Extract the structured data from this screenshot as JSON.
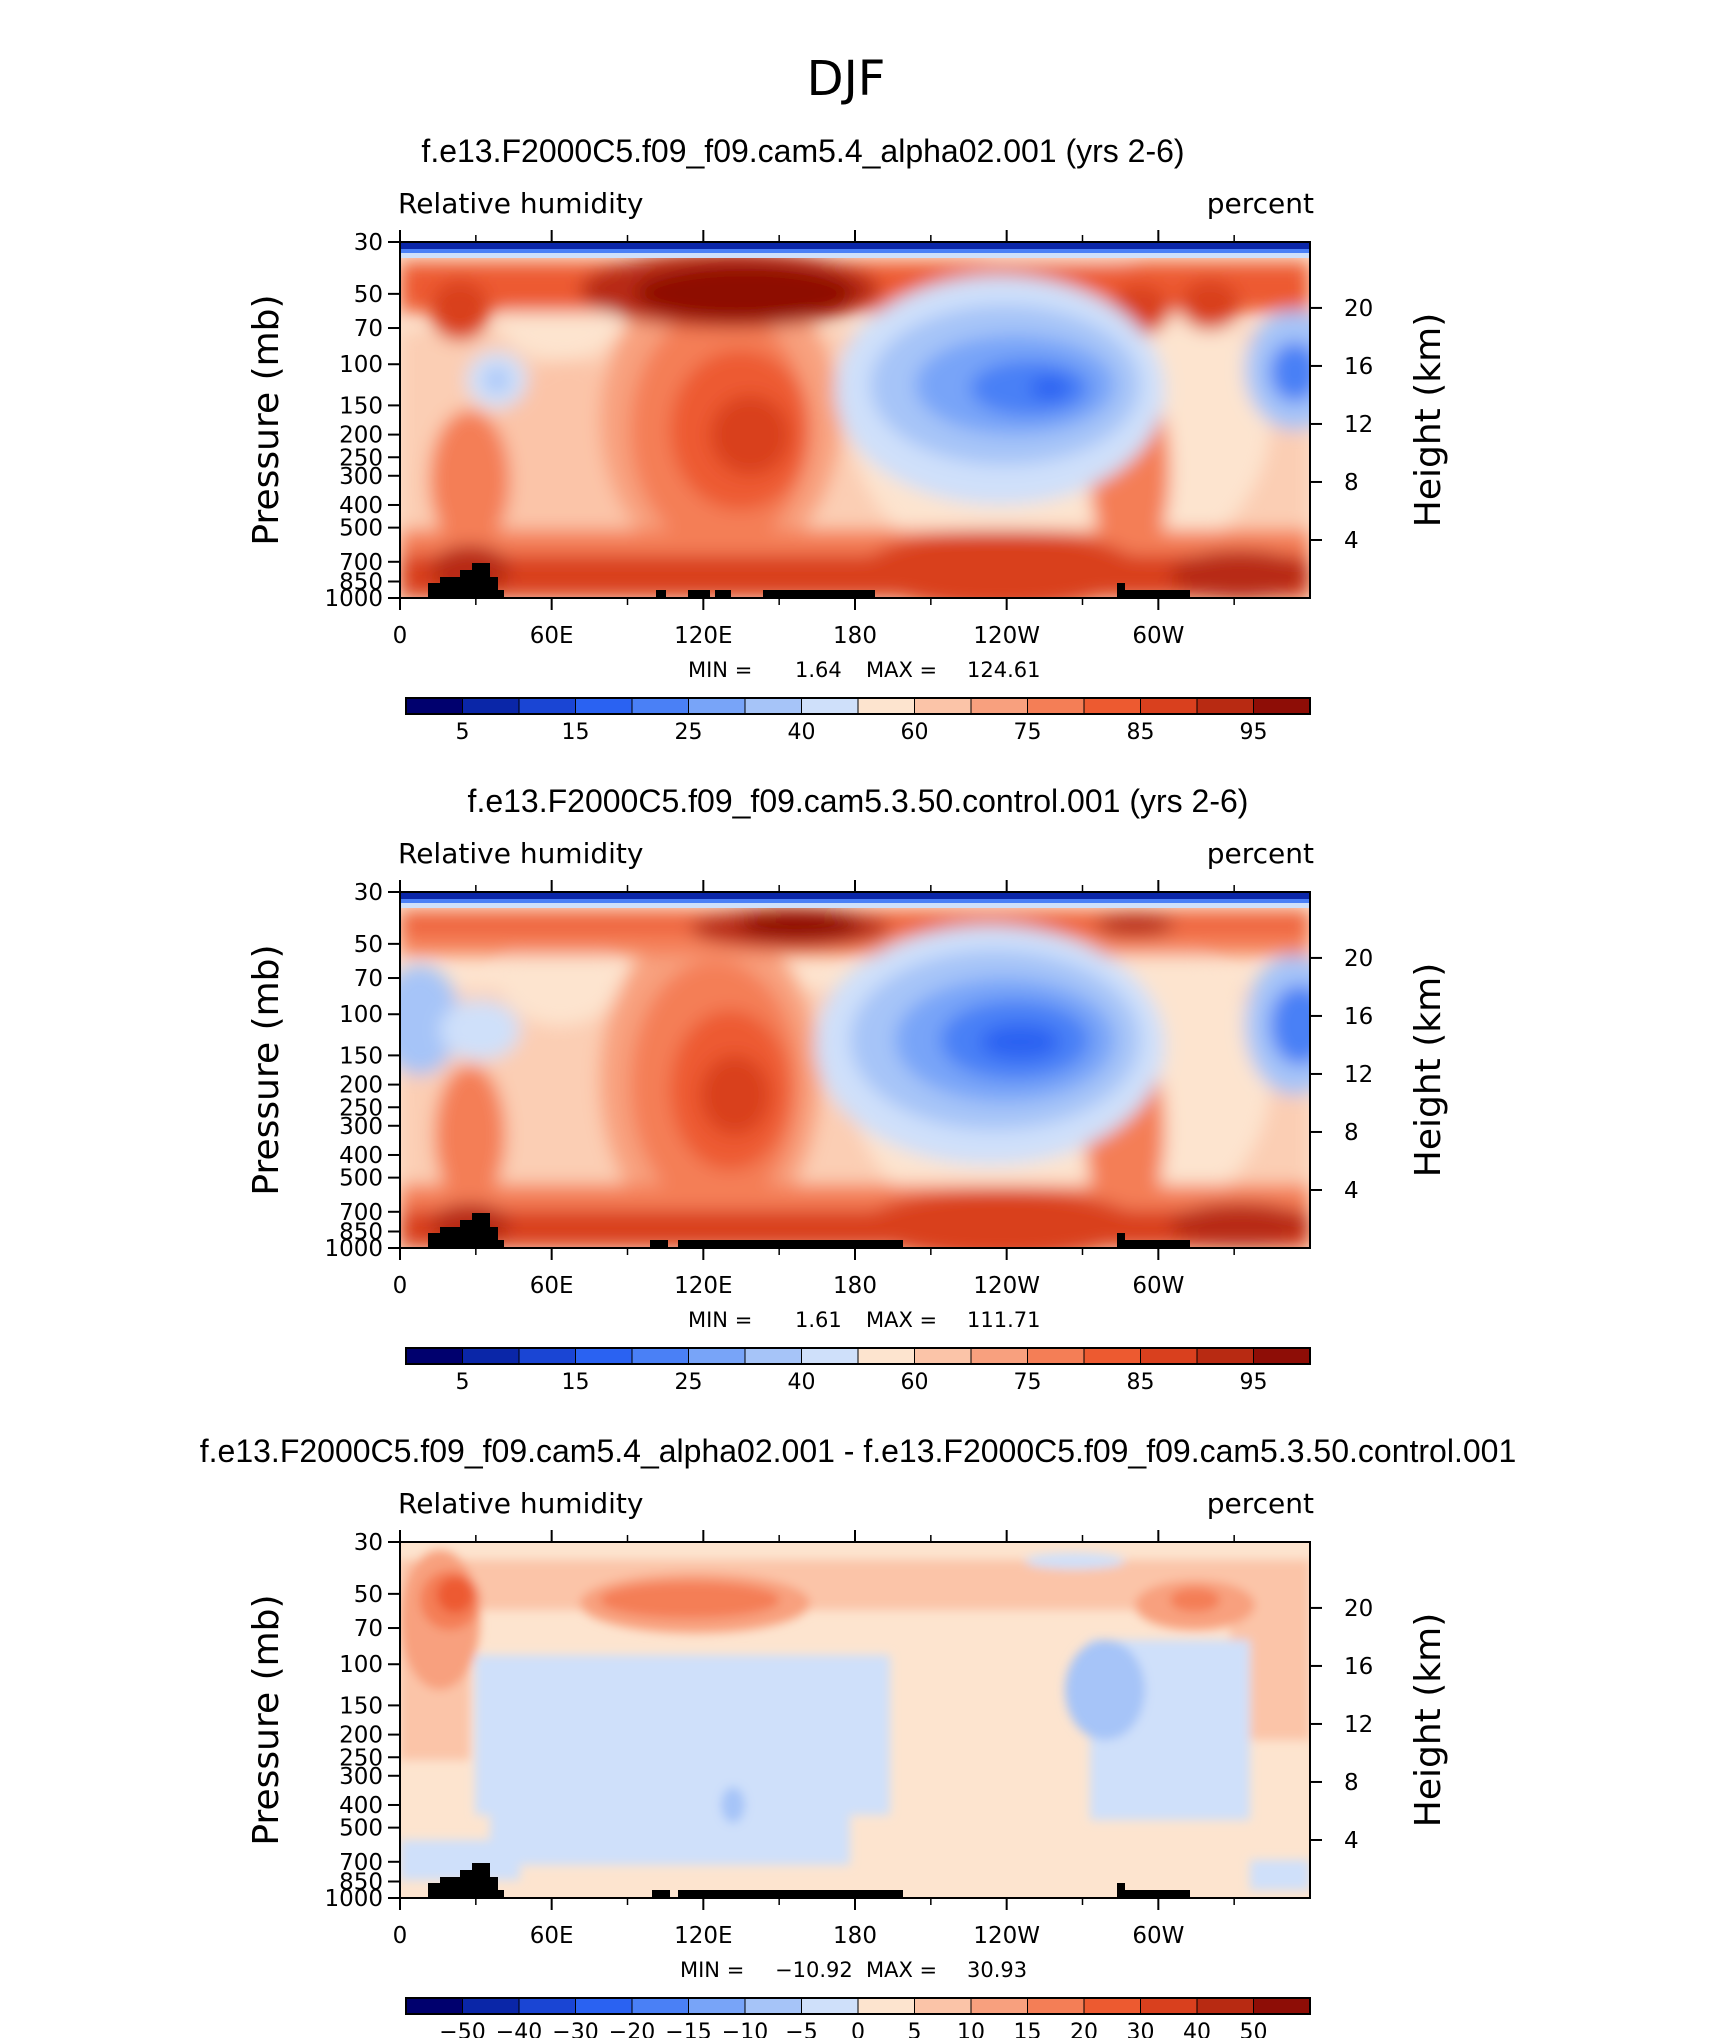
{
  "figure": {
    "title": "DJF"
  },
  "chart_data": [
    {
      "type": "heatmap",
      "title": "f.e13.F2000C5.f09_f09.cam5.4_alpha02.001 (yrs 2-6)",
      "variable": "Relative humidity",
      "units": "percent",
      "ylabel": "Pressure (mb)",
      "ylabel_right": "Height (km)",
      "pressure_ticks": [
        "30",
        "50",
        "70",
        "100",
        "150",
        "200",
        "250",
        "300",
        "400",
        "500",
        "700",
        "850",
        "1000"
      ],
      "height_ticks": [
        "20",
        "16",
        "12",
        "8",
        "4"
      ],
      "x_ticks": [
        "0",
        "60E",
        "120E",
        "180",
        "120W",
        "60W"
      ],
      "min_label": "MIN =",
      "min_value": "1.64",
      "max_label": "MAX =",
      "max_value": "124.61",
      "colorbar_ticks": [
        "5",
        "15",
        "25",
        "40",
        "60",
        "75",
        "85",
        "95"
      ],
      "colorbar_colors": [
        "#00006e",
        "#0a26a8",
        "#1a45d4",
        "#2a62f2",
        "#4a80f6",
        "#78a4f8",
        "#a6c4f8",
        "#cfe0fa",
        "#fde4cf",
        "#fbc4a8",
        "#f8a07e",
        "#f47e56",
        "#ed5a30",
        "#d9401e",
        "#b82a12",
        "#8e0d06"
      ]
    },
    {
      "type": "heatmap",
      "title": "f.e13.F2000C5.f09_f09.cam5.3.50.control.001 (yrs 2-6)",
      "variable": "Relative humidity",
      "units": "percent",
      "ylabel": "Pressure (mb)",
      "ylabel_right": "Height (km)",
      "pressure_ticks": [
        "30",
        "50",
        "70",
        "100",
        "150",
        "200",
        "250",
        "300",
        "400",
        "500",
        "700",
        "850",
        "1000"
      ],
      "height_ticks": [
        "20",
        "16",
        "12",
        "8",
        "4"
      ],
      "x_ticks": [
        "0",
        "60E",
        "120E",
        "180",
        "120W",
        "60W"
      ],
      "min_label": "MIN =",
      "min_value": "1.61",
      "max_label": "MAX =",
      "max_value": "111.71",
      "colorbar_ticks": [
        "5",
        "15",
        "25",
        "40",
        "60",
        "75",
        "85",
        "95"
      ],
      "colorbar_colors": [
        "#00006e",
        "#0a26a8",
        "#1a45d4",
        "#2a62f2",
        "#4a80f6",
        "#78a4f8",
        "#a6c4f8",
        "#cfe0fa",
        "#fde4cf",
        "#fbc4a8",
        "#f8a07e",
        "#f47e56",
        "#ed5a30",
        "#d9401e",
        "#b82a12",
        "#8e0d06"
      ]
    },
    {
      "type": "heatmap",
      "title": "f.e13.F2000C5.f09_f09.cam5.4_alpha02.001 - f.e13.F2000C5.f09_f09.cam5.3.50.control.001",
      "variable": "Relative humidity",
      "units": "percent",
      "ylabel": "Pressure (mb)",
      "ylabel_right": "Height (km)",
      "pressure_ticks": [
        "30",
        "50",
        "70",
        "100",
        "150",
        "200",
        "250",
        "300",
        "400",
        "500",
        "700",
        "850",
        "1000"
      ],
      "height_ticks": [
        "20",
        "16",
        "12",
        "8",
        "4"
      ],
      "x_ticks": [
        "0",
        "60E",
        "120E",
        "180",
        "120W",
        "60W"
      ],
      "min_label": "MIN =",
      "min_value": "−10.92",
      "max_label": "MAX =",
      "max_value": "30.93",
      "colorbar_ticks": [
        "−50",
        "−40",
        "−30",
        "−20",
        "−15",
        "−10",
        "−5",
        "0",
        "5",
        "10",
        "15",
        "20",
        "30",
        "40",
        "50"
      ],
      "colorbar_colors": [
        "#00006e",
        "#0a26a8",
        "#1a45d4",
        "#2a62f2",
        "#4a80f6",
        "#78a4f8",
        "#a6c4f8",
        "#cfe0fa",
        "#fde4cf",
        "#fbc4a8",
        "#f8a07e",
        "#f47e56",
        "#ed5a30",
        "#d9401e",
        "#b82a12",
        "#8e0d06"
      ]
    }
  ]
}
